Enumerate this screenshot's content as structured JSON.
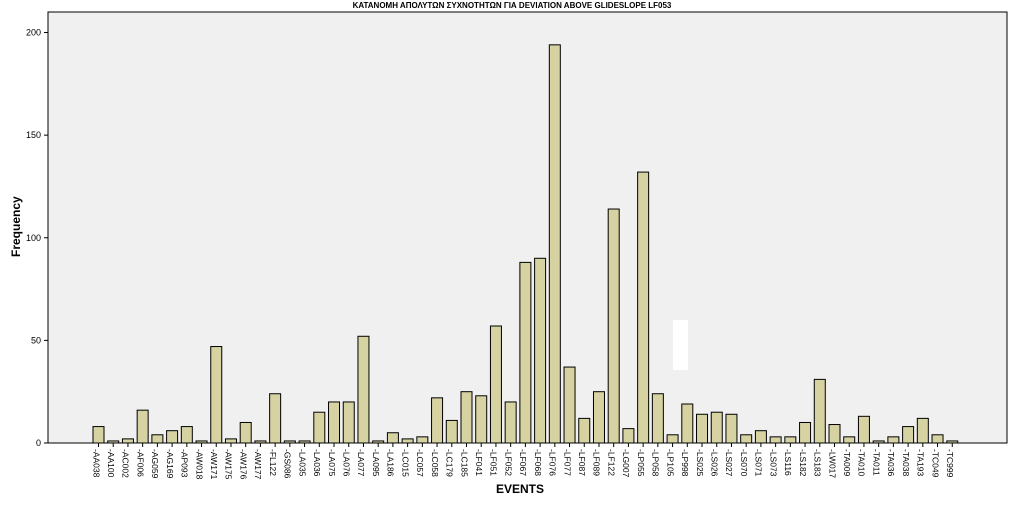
{
  "chart_data": {
    "type": "bar",
    "title": "ΚΑΤΑΝΟΜΗ ΑΠΟΛΥΤΩΝ ΣΥΧΝΟΤΗΤΩΝ ΓΙΑ DEVIATION ABOVE GLIDESLOPE LF053",
    "xlabel": "EVENTS",
    "ylabel": "Frequency",
    "ylim": [
      0,
      210
    ],
    "yticks": [
      0,
      50,
      100,
      150,
      200
    ],
    "grid": false,
    "categories": [
      "AA038",
      "AA100",
      "AC002",
      "AF006",
      "AG059",
      "AG169",
      "AP093",
      "AW018",
      "AW171",
      "AW175",
      "AW176",
      "AW177",
      "FL122",
      "GS086",
      "LA035",
      "LA036",
      "LA075",
      "LA076",
      "LA077",
      "LA095",
      "LA186",
      "LC015",
      "LC057",
      "LC058",
      "LC179",
      "LC185",
      "LF041",
      "LF051",
      "LF052",
      "LF067",
      "LF068",
      "LF076",
      "LF077",
      "LF087",
      "LF089",
      "LF122",
      "LG007",
      "LP055",
      "LP058",
      "LP105",
      "LP998",
      "LS025",
      "LS026",
      "LS027",
      "LS070",
      "LS071",
      "LS073",
      "LS116",
      "LS182",
      "LS183",
      "LW017",
      "TA009",
      "TA010",
      "TA011",
      "TA036",
      "TA038",
      "TA193",
      "TC049",
      "TC999"
    ],
    "values": [
      8,
      1,
      2,
      16,
      4,
      6,
      8,
      1,
      47,
      2,
      10,
      1,
      24,
      1,
      1,
      15,
      20,
      20,
      52,
      1,
      5,
      2,
      3,
      22,
      11,
      25,
      23,
      57,
      20,
      88,
      90,
      194,
      37,
      12,
      25,
      114,
      7,
      132,
      24,
      4,
      19,
      14,
      15,
      14,
      4,
      6,
      3,
      3,
      10,
      31,
      9,
      3,
      13,
      1,
      3,
      8,
      12,
      4,
      1
    ],
    "colors": {
      "bar_fill": "#d6d2a1",
      "bar_stroke": "#000000",
      "plot_background": "#f0f0f0",
      "page_background": "#ffffff"
    }
  }
}
